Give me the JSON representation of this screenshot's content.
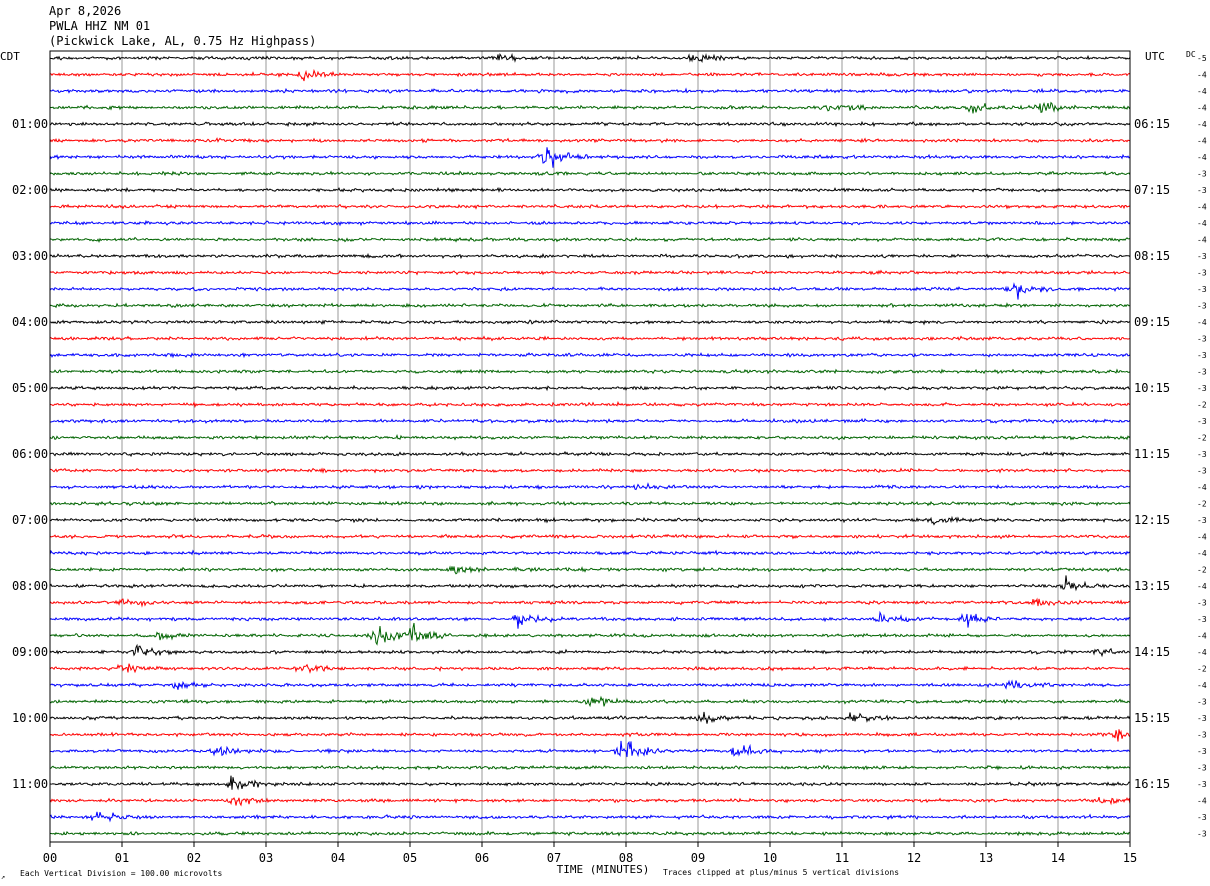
{
  "header": {
    "date": "Apr 8,2026",
    "station": "PWLA HHZ NM 01",
    "location": "(Pickwick Lake, AL, 0.75 Hz Highpass)"
  },
  "axis": {
    "left_label": "CDT",
    "right_label": "UTC",
    "dc_label": "DC",
    "xlabel": "TIME (MINUTES)",
    "scale_note": "Each Vertical Division =  100.00 microvolts",
    "clip_note": "Traces clipped at plus/minus 5 vertical divisions",
    "corner_mark": "↗"
  },
  "chart_data": {
    "type": "line",
    "title": "",
    "xlabel": "TIME (MINUTES)",
    "xlim": [
      0,
      15
    ],
    "x_ticks": [
      "00",
      "01",
      "02",
      "03",
      "04",
      "05",
      "06",
      "07",
      "08",
      "09",
      "10",
      "11",
      "12",
      "13",
      "14",
      "15"
    ],
    "trace_count": 48,
    "trace_colors": [
      "#000000",
      "#ff0000",
      "#0000ff",
      "#006400"
    ],
    "cdt_hour_labels": [
      "01:00",
      "02:00",
      "03:00",
      "04:00",
      "05:00",
      "06:00",
      "07:00",
      "08:00",
      "09:00",
      "10:00",
      "11:00"
    ],
    "utc_hour_labels": [
      "06:15",
      "07:15",
      "08:15",
      "09:15",
      "10:15",
      "11:15",
      "12:15",
      "13:15",
      "14:15",
      "15:15",
      "16:15"
    ],
    "dc_offsets": [
      "-5",
      "-4",
      "-4",
      "-4",
      "-4",
      "-4",
      "-4",
      "-3",
      "-3",
      "-4",
      "-4",
      "-4",
      "-3",
      "-3",
      "-3",
      "-3",
      "-4",
      "-3",
      "-3",
      "-3",
      "-3",
      "-2",
      "-3",
      "-2",
      "-3",
      "-3",
      "-4",
      "-2",
      "-3",
      "-4",
      "-4",
      "-2",
      "-4",
      "-3",
      "-3",
      "-4",
      "-4",
      "-2",
      "-4",
      "-3",
      "-3",
      "-3",
      "-3",
      "-3",
      "-3",
      "-4",
      "-3",
      "-3"
    ],
    "events": [
      {
        "trace": 0,
        "minute": 6.2,
        "strength": 1.3
      },
      {
        "trace": 0,
        "minute": 8.9,
        "strength": 1.3
      },
      {
        "trace": 1,
        "minute": 3.5,
        "strength": 1.5
      },
      {
        "trace": 3,
        "minute": 10.8,
        "strength": 1.8
      },
      {
        "trace": 3,
        "minute": 12.8,
        "strength": 1.5
      },
      {
        "trace": 3,
        "minute": 13.7,
        "strength": 1.6
      },
      {
        "trace": 6,
        "minute": 6.85,
        "strength": 4.0
      },
      {
        "trace": 14,
        "minute": 13.35,
        "strength": 2.8
      },
      {
        "trace": 26,
        "minute": 8.1,
        "strength": 1.4
      },
      {
        "trace": 28,
        "minute": 12.2,
        "strength": 1.2
      },
      {
        "trace": 31,
        "minute": 5.6,
        "strength": 1.5
      },
      {
        "trace": 32,
        "minute": 14.1,
        "strength": 2.0
      },
      {
        "trace": 33,
        "minute": 1.0,
        "strength": 1.6
      },
      {
        "trace": 33,
        "minute": 13.7,
        "strength": 1.8
      },
      {
        "trace": 34,
        "minute": 6.5,
        "strength": 2.4
      },
      {
        "trace": 34,
        "minute": 12.7,
        "strength": 2.4
      },
      {
        "trace": 34,
        "minute": 11.5,
        "strength": 1.6
      },
      {
        "trace": 35,
        "minute": 4.5,
        "strength": 3.2
      },
      {
        "trace": 35,
        "minute": 5.0,
        "strength": 2.4
      },
      {
        "trace": 35,
        "minute": 1.5,
        "strength": 1.5
      },
      {
        "trace": 36,
        "minute": 1.2,
        "strength": 2.0
      },
      {
        "trace": 36,
        "minute": 14.5,
        "strength": 1.4
      },
      {
        "trace": 37,
        "minute": 1.0,
        "strength": 1.8
      },
      {
        "trace": 37,
        "minute": 3.5,
        "strength": 1.3
      },
      {
        "trace": 38,
        "minute": 1.7,
        "strength": 1.6
      },
      {
        "trace": 38,
        "minute": 13.3,
        "strength": 1.8
      },
      {
        "trace": 39,
        "minute": 7.5,
        "strength": 1.6
      },
      {
        "trace": 40,
        "minute": 11.1,
        "strength": 2.0
      },
      {
        "trace": 40,
        "minute": 9.0,
        "strength": 1.8
      },
      {
        "trace": 41,
        "minute": 14.8,
        "strength": 1.8
      },
      {
        "trace": 42,
        "minute": 7.9,
        "strength": 4.8
      },
      {
        "trace": 42,
        "minute": 9.5,
        "strength": 2.6
      },
      {
        "trace": 42,
        "minute": 2.3,
        "strength": 1.6
      },
      {
        "trace": 44,
        "minute": 2.5,
        "strength": 2.4
      },
      {
        "trace": 45,
        "minute": 2.5,
        "strength": 1.6
      },
      {
        "trace": 45,
        "minute": 14.6,
        "strength": 1.5
      },
      {
        "trace": 46,
        "minute": 0.6,
        "strength": 1.8
      }
    ]
  }
}
